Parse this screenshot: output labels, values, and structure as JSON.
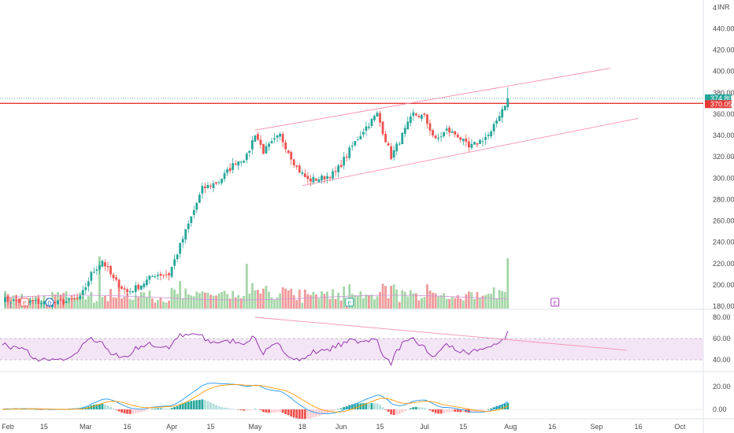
{
  "chart_data": {
    "type": "candlestick",
    "currency": "INR",
    "colors": {
      "up": "#26a69a",
      "down": "#ef5350",
      "volume_up": "#a5d6a7",
      "volume_down": "#ef9a9a",
      "trendline": "#f48fb1",
      "hline": "#e53935",
      "rsi_line": "#8e24aa",
      "rsi_band": "#f3e5f5",
      "macd_line": "#2196f3",
      "signal_line": "#ff9800",
      "current_tag": "#26a69a",
      "level_tag": "#e53935"
    },
    "price_axis": {
      "ticks": [
        "440.00",
        "420.00",
        "400.00",
        "380.00",
        "360.00",
        "340.00",
        "320.00",
        "300.00",
        "280.00",
        "260.00",
        "240.00",
        "220.00",
        "200.00",
        "180.00"
      ],
      "ylim": [
        180,
        450
      ],
      "partial_top": "4"
    },
    "rsi_axis": {
      "ticks": [
        "80.00",
        "60.00",
        "40.00"
      ],
      "ylim": [
        25,
        85
      ],
      "band": [
        40,
        60
      ]
    },
    "macd_axis": {
      "ticks": [
        "20.00",
        "0.00"
      ],
      "ylim": [
        -8,
        28
      ]
    },
    "time_axis": {
      "labels": [
        "Feb",
        "15",
        "Mar",
        "16",
        "Apr",
        "15",
        "May",
        "18",
        "Jun",
        "15",
        "Jul",
        "15",
        "Aug",
        "16",
        "Sep",
        "16",
        "Oct"
      ],
      "label_day": [
        2,
        15,
        30,
        45,
        61,
        75,
        91,
        108,
        122,
        136,
        152,
        166,
        183,
        198,
        214,
        229,
        244
      ]
    },
    "current_price": "374.80",
    "level_price": "370.05",
    "level_value": 370.05,
    "current_value": 374.8,
    "trendlines": {
      "price_upper": [
        [
          91,
          345
        ],
        [
          219,
          403
        ]
      ],
      "price_lower": [
        [
          108,
          293
        ],
        [
          229,
          356
        ]
      ],
      "rsi": [
        [
          91,
          80
        ],
        [
          225,
          49
        ]
      ]
    },
    "events": [
      {
        "label": "E",
        "day": 8,
        "color": "#ef5350"
      },
      {
        "label": "D",
        "day": 17,
        "color": "#1565c0"
      },
      {
        "label": "E",
        "day": 125,
        "color": "#26a69a"
      },
      {
        "label": "E",
        "day": 199,
        "color": "#ab47bc"
      }
    ],
    "key_points": {
      "day": [
        0,
        10,
        20,
        28,
        32,
        36,
        40,
        45,
        50,
        55,
        60,
        66,
        72,
        78,
        84,
        88,
        91,
        94,
        100,
        106,
        110,
        115,
        120,
        126,
        130,
        135,
        140,
        144,
        148,
        152,
        156,
        160,
        164,
        168,
        172,
        176,
        179,
        182
      ],
      "close": [
        186,
        184,
        183,
        187,
        210,
        223,
        205,
        193,
        200,
        210,
        210,
        250,
        290,
        297,
        315,
        320,
        342,
        325,
        340,
        310,
        298,
        300,
        305,
        330,
        345,
        360,
        320,
        340,
        360,
        357,
        335,
        345,
        340,
        328,
        335,
        342,
        360,
        374.8
      ]
    }
  }
}
